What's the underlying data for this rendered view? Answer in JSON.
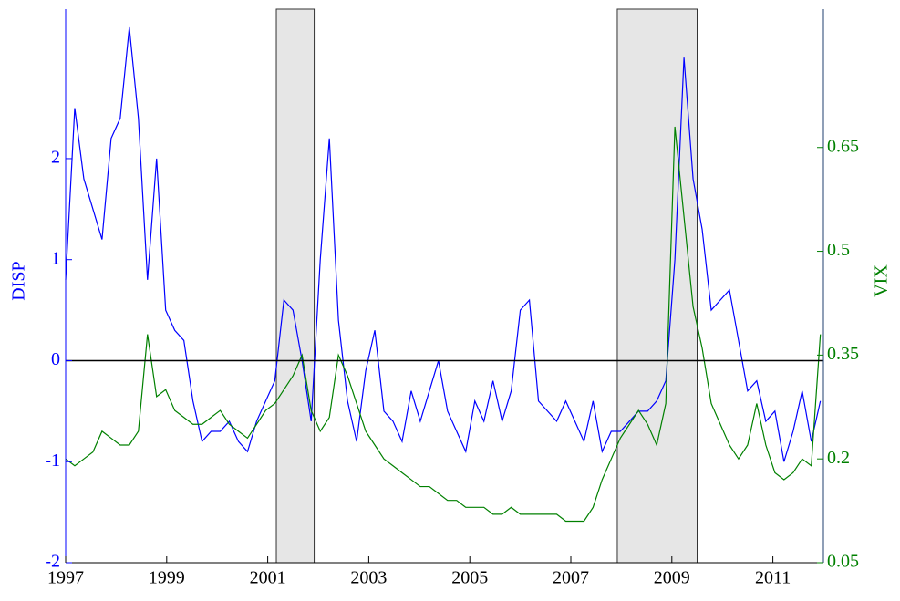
{
  "chart_data": {
    "type": "line",
    "ylabel": "DISP",
    "y2label": "VIX",
    "x": [
      1997,
      1997.18,
      1997.36,
      1997.54,
      1997.72,
      1997.9,
      1998.08,
      1998.26,
      1998.44,
      1998.62,
      1998.8,
      1998.98,
      1999.16,
      1999.34,
      1999.52,
      1999.7,
      1999.88,
      2000.06,
      2000.24,
      2000.42,
      2000.6,
      2000.78,
      2000.96,
      2001.14,
      2001.32,
      2001.5,
      2001.68,
      2001.86,
      2002.04,
      2002.22,
      2002.4,
      2002.58,
      2002.76,
      2002.94,
      2003.12,
      2003.3,
      2003.48,
      2003.66,
      2003.84,
      2004.02,
      2004.2,
      2004.38,
      2004.56,
      2004.74,
      2004.92,
      2005.1,
      2005.28,
      2005.46,
      2005.64,
      2005.82,
      2006,
      2006.18,
      2006.36,
      2006.54,
      2006.72,
      2006.9,
      2007.08,
      2007.26,
      2007.44,
      2007.62,
      2007.8,
      2007.98,
      2008.16,
      2008.34,
      2008.52,
      2008.7,
      2008.88,
      2009.06,
      2009.24,
      2009.42,
      2009.6,
      2009.78,
      2009.96,
      2010.14,
      2010.32,
      2010.5,
      2010.68,
      2010.86,
      2011.04,
      2011.22,
      2011.4,
      2011.58,
      2011.76,
      2011.94
    ],
    "series": [
      {
        "name": "DISP",
        "color": "#0000ff",
        "values": [
          0.8,
          2.5,
          1.8,
          1.5,
          1.2,
          2.2,
          2.4,
          3.3,
          2.4,
          0.8,
          2.0,
          0.5,
          0.3,
          0.2,
          -0.4,
          -0.8,
          -0.7,
          -0.7,
          -0.6,
          -0.8,
          -0.9,
          -0.6,
          -0.4,
          -0.2,
          0.6,
          0.5,
          0.0,
          -0.6,
          1.0,
          2.2,
          0.4,
          -0.4,
          -0.8,
          -0.1,
          0.3,
          -0.5,
          -0.6,
          -0.8,
          -0.3,
          -0.6,
          -0.3,
          0.0,
          -0.5,
          -0.7,
          -0.9,
          -0.4,
          -0.6,
          -0.2,
          -0.6,
          -0.3,
          0.5,
          0.6,
          -0.4,
          -0.5,
          -0.6,
          -0.4,
          -0.6,
          -0.8,
          -0.4,
          -0.9,
          -0.7,
          -0.7,
          -0.6,
          -0.5,
          -0.5,
          -0.4,
          -0.2,
          1.0,
          3.0,
          1.8,
          1.3,
          0.5,
          0.6,
          0.7,
          0.2,
          -0.3,
          -0.2,
          -0.6,
          -0.5,
          -1.0,
          -0.7,
          -0.3,
          -0.8,
          -0.4
        ]
      },
      {
        "name": "VIX",
        "color": "#008000",
        "axis": "y2",
        "values": [
          0.2,
          0.19,
          0.2,
          0.21,
          0.24,
          0.23,
          0.22,
          0.22,
          0.24,
          0.38,
          0.29,
          0.3,
          0.27,
          0.26,
          0.25,
          0.25,
          0.26,
          0.27,
          0.25,
          0.24,
          0.23,
          0.25,
          0.27,
          0.28,
          0.3,
          0.32,
          0.35,
          0.27,
          0.24,
          0.26,
          0.35,
          0.32,
          0.28,
          0.24,
          0.22,
          0.2,
          0.19,
          0.18,
          0.17,
          0.16,
          0.16,
          0.15,
          0.14,
          0.14,
          0.13,
          0.13,
          0.13,
          0.12,
          0.12,
          0.13,
          0.12,
          0.12,
          0.12,
          0.12,
          0.12,
          0.11,
          0.11,
          0.11,
          0.13,
          0.17,
          0.2,
          0.23,
          0.25,
          0.27,
          0.25,
          0.22,
          0.28,
          0.68,
          0.55,
          0.42,
          0.36,
          0.28,
          0.25,
          0.22,
          0.2,
          0.22,
          0.28,
          0.22,
          0.18,
          0.17,
          0.18,
          0.2,
          0.19,
          0.38
        ]
      }
    ],
    "xlim": [
      1997,
      2012
    ],
    "xticks": [
      1997,
      1999,
      2001,
      2003,
      2005,
      2007,
      2009,
      2011
    ],
    "ylim": [
      -2,
      3.48
    ],
    "yticks": [
      -2,
      -1,
      0,
      1,
      2
    ],
    "y2lim": [
      0.05,
      0.85
    ],
    "y2ticks": [
      0.05,
      0.2,
      0.35,
      0.5,
      0.65
    ],
    "hline": 0,
    "shaded": [
      [
        2001.17,
        2001.92
      ],
      [
        2007.92,
        2009.5
      ]
    ]
  }
}
